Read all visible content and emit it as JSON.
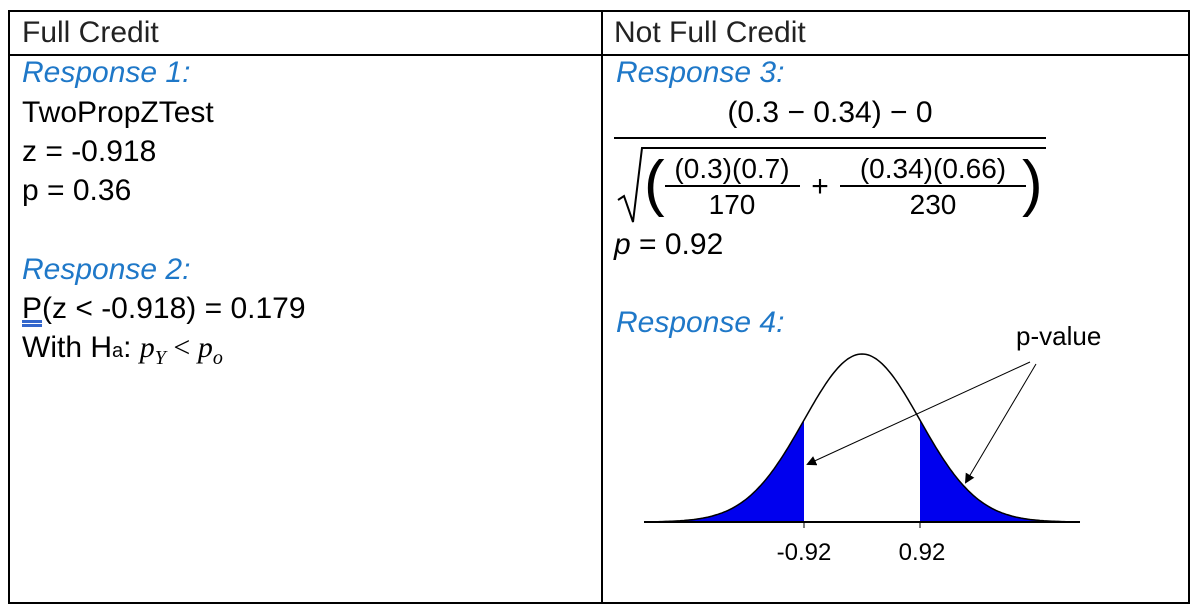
{
  "headers": {
    "left": "Full Credit",
    "right": "Not Full Credit"
  },
  "response1": {
    "title": "Response 1:",
    "lines": [
      "TwoPropZTest",
      "z = -0.918",
      "p = 0.36"
    ]
  },
  "response2": {
    "title": "Response 2:",
    "line1_prefix": "P",
    "line1_rest": "(z < -0.918) = 0.179",
    "line2_prefix": "With H",
    "line2_sub": "a",
    "line2_colon": ": ",
    "line2_math": "p",
    "line2_math_sub": "Y",
    "line2_op": " < ",
    "line2_math2": "p",
    "line2_math2_sub": "o"
  },
  "response3": {
    "title": "Response 3:",
    "numerator": "(0.3 − 0.34) − 0",
    "frac1_num": "(0.3)(0.7)",
    "frac1_den": "170",
    "plus": "+",
    "frac2_num": "(0.34)(0.66)",
    "frac2_den": "230",
    "p_label": "p",
    "p_value": " = 0.92"
  },
  "response4": {
    "title": "Response 4:",
    "annotation": "p-value",
    "tick_left": "-0.92",
    "tick_right": "0.92",
    "fill_color": "#0000ee"
  }
}
